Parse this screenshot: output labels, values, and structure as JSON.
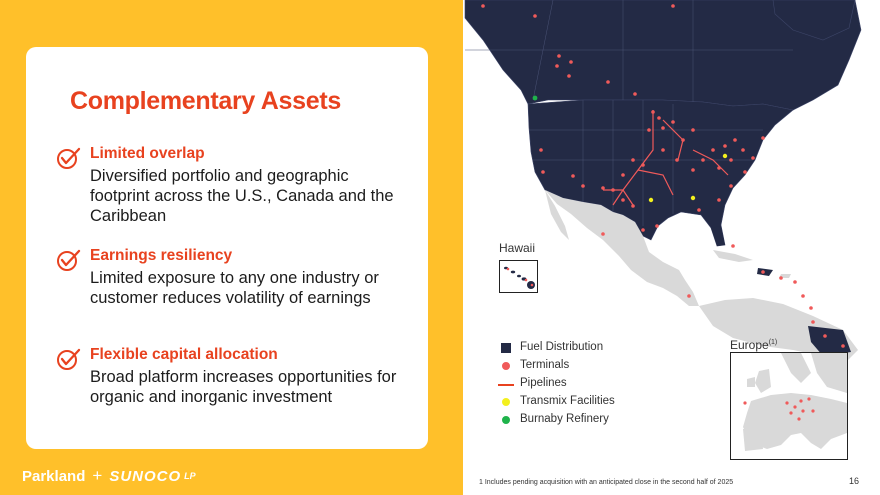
{
  "slide": {
    "title": "Complementary Assets",
    "points": [
      {
        "heading": "Limited overlap",
        "body": "Diversified portfolio and geographic footprint across the U.S., Canada and the Caribbean"
      },
      {
        "heading": "Earnings resiliency",
        "body": "Limited exposure to any one industry or customer reduces volatility of earnings"
      },
      {
        "heading": "Flexible capital allocation",
        "body": "Broad platform increases opportunities for organic and inorganic investment"
      }
    ],
    "page_number": "16"
  },
  "brand": {
    "parkland": "Parkland",
    "plus": "+",
    "sunoco": "SUNOCO",
    "lp": "LP"
  },
  "map": {
    "hawaii_label": "Hawaii",
    "europe_label": "Europe",
    "europe_sup": "(1)",
    "footnote": "1 Includes pending acquisition with an anticipated close in the second half of 2025"
  },
  "legend": [
    {
      "label": "Fuel Distribution",
      "swatch": "square",
      "color": "#232a45"
    },
    {
      "label": "Terminals",
      "swatch": "dot",
      "color": "#F05A5A"
    },
    {
      "label": "Pipelines",
      "swatch": "line",
      "color": "#E8421F"
    },
    {
      "label": "Transmix Facilities",
      "swatch": "dot",
      "color": "#F3F01E"
    },
    {
      "label": "Burnaby Refinery",
      "swatch": "dot",
      "color": "#1FB34B"
    }
  ],
  "colors": {
    "panel": "#FFC02A",
    "accent": "#E8421F",
    "fuel_distribution": "#232a45",
    "land": "#D9D9D9"
  },
  "icons": {
    "check": "check-circle-icon"
  }
}
